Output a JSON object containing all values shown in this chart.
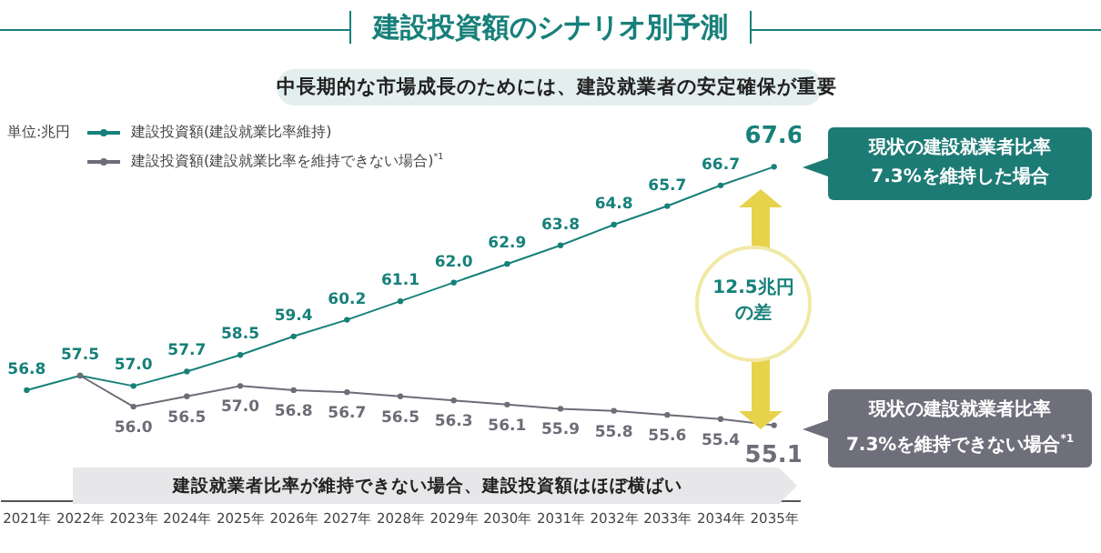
{
  "chart_data": {
    "type": "line",
    "title": "建設投資額のシナリオ別予測",
    "subtitle": "中長期的な市場成長のためには、建設就業者の安定確保が重要",
    "categories": [
      "2021年",
      "2022年",
      "2023年",
      "2024年",
      "2025年",
      "2026年",
      "2027年",
      "2028年",
      "2029年",
      "2030年",
      "2031年",
      "2032年",
      "2033年",
      "2034年",
      "2035年"
    ],
    "series": [
      {
        "name": "建設投資額(建設就業比率維持)",
        "color": "#17807a",
        "values": [
          56.8,
          57.5,
          57.0,
          57.7,
          58.5,
          59.4,
          60.2,
          61.1,
          62.0,
          62.9,
          63.8,
          64.8,
          65.7,
          66.7,
          67.6
        ],
        "value_labels": [
          "56.8",
          "57.5",
          "57.0",
          "57.7",
          "58.5",
          "59.4",
          "60.2",
          "61.1",
          "62.0",
          "62.9",
          "63.8",
          "64.8",
          "65.7",
          "66.7",
          "67.6"
        ]
      },
      {
        "name": "建設投資額(建設就業比率を維持できない場合)$^{*1}$",
        "color": "#6c6d77",
        "values": [
          null,
          57.5,
          56.0,
          56.5,
          57.0,
          56.8,
          56.7,
          56.5,
          56.3,
          56.1,
          55.9,
          55.8,
          55.6,
          55.4,
          55.1
        ],
        "value_labels": [
          null,
          null,
          "56.0",
          "56.5",
          "57.0",
          "56.8",
          "56.7",
          "56.5",
          "56.3",
          "56.1",
          "55.9",
          "55.8",
          "55.6",
          "55.4",
          "55.1"
        ]
      }
    ],
    "annotations": [
      "単位:兆円",
      "現状の建設就業者比率\n7.3%を維持した場合",
      "12.5兆円の差",
      "現状の建設就業者比率\n7.3%を維持できない場合$^{*1}$",
      "建設就業者比率が維持できない場合、建設投資額はほぼ横ばい"
    ],
    "legend": "top left",
    "marker": "circle",
    "line_style": "solid",
    "tick_labels": "x"
  }
}
